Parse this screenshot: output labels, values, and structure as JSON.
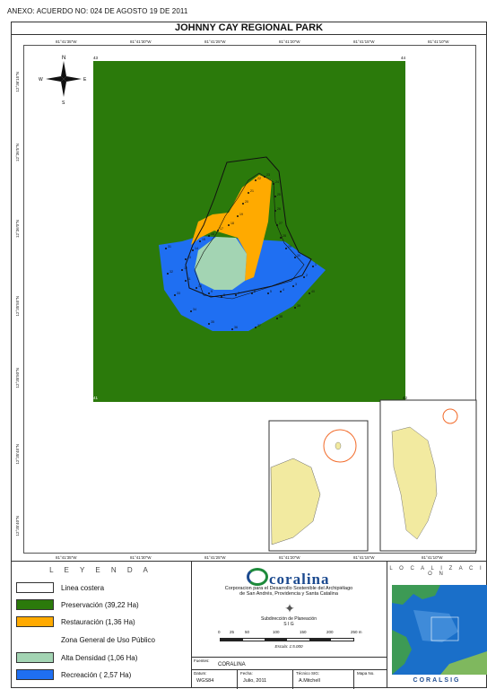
{
  "header": {
    "annex": "ANEXO:   ACUERDO NO:  024 DE AGOSTO 19 DE 2011",
    "title": "JOHNNY CAY REGIONAL PARK"
  },
  "map": {
    "top_ticks": [
      "81°41'35\"W",
      "81°41'30\"W",
      "81°41'25\"W",
      "81°41'20\"W",
      "81°41'15\"W",
      "81°41'10\"W"
    ],
    "bottom_ticks": [
      "81°41'35\"W",
      "81°41'30\"W",
      "81°41'25\"W",
      "81°41'20\"W",
      "81°41'15\"W",
      "81°41'10\"W"
    ],
    "left_ticks": [
      "12°36'15\"N",
      "12°36'5\"N",
      "12°36'0\"N",
      "12°35'55\"N",
      "12°35'50\"N",
      "12°35'45\"N",
      "12°35'40\"N"
    ],
    "corner_labels": [
      "43",
      "44",
      "41",
      "42"
    ],
    "compass": {
      "n": "N",
      "s": "S",
      "e": "E",
      "w": "W"
    },
    "colors": {
      "preservacion": "#2b7a0b",
      "restauracion": "#ffaa00",
      "alta_densidad": "#a3d4b3",
      "recreacion": "#1f6ff2",
      "coast": "#111111",
      "inset_island": "#f2eaa0",
      "inset_circle": "#f26b2a"
    },
    "point_labels": [
      "1",
      "2",
      "3",
      "4",
      "5",
      "6",
      "7",
      "8",
      "9",
      "10",
      "11",
      "12",
      "13",
      "14",
      "15",
      "16",
      "17",
      "18",
      "19",
      "20",
      "21",
      "22",
      "23",
      "24",
      "25",
      "26",
      "27",
      "28",
      "29",
      "30",
      "31",
      "32",
      "33",
      "34",
      "35",
      "36",
      "37",
      "38",
      "39",
      "40"
    ]
  },
  "legend": {
    "title": "L E Y E N D A",
    "items": [
      {
        "label": "Linea costera",
        "color": "#ffffff"
      },
      {
        "label": "Preservación (39,22 Ha)",
        "color": "#2b7a0b"
      },
      {
        "label": "Restauración (1,36 Ha)",
        "color": "#ffaa00"
      },
      {
        "label": "Alta Densidad  (1,06 Ha)",
        "color": "#a3d4b3"
      },
      {
        "label": "Recreación ( 2,57 Ha)",
        "color": "#1f6ff2"
      }
    ],
    "subheading": "Zona General de Uso Público"
  },
  "info": {
    "logo": "coralina",
    "org_line1": "Corporacion para el Desarrollo Sostenible del Archipiélago",
    "org_line2": "de San Andrés, Providencia y Santa Catalina",
    "sub_line1": "Subdirección de Planeación",
    "sub_line2": "S I G",
    "scale_labels": [
      "0",
      "25",
      "50",
      "100",
      "150",
      "200",
      "250  m"
    ],
    "scale_text": "Escala: 1:5.000",
    "source_label": "Fuentes:",
    "source_value": "CORALINA",
    "datum_label": "Datum:",
    "datum_value": "WGS84",
    "fecha_label": "Fecha:",
    "fecha_value": "Julio, 2011",
    "tecnico_label": "Técnico SIG:",
    "tecnico_value": "A.Mitchell",
    "mapa_label": "Mapa No."
  },
  "localization": {
    "title": "L O C A L I Z A C I O N",
    "footer": "CORALSIG"
  }
}
